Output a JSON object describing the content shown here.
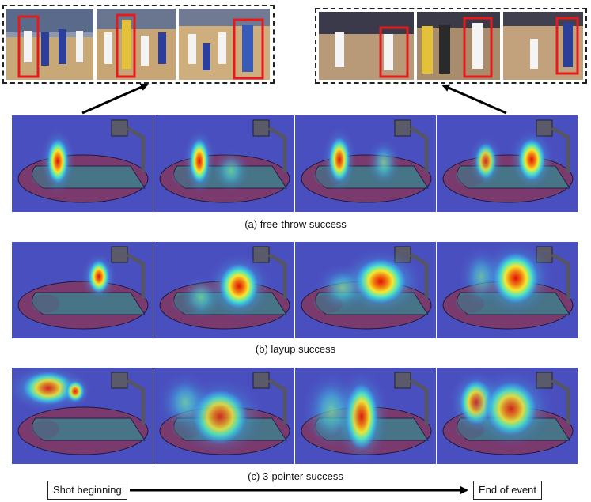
{
  "captions": {
    "a": "(a) free-throw success",
    "b": "(b) layup success",
    "c": "(c) 3-pointer success"
  },
  "timeline": {
    "start_label": "Shot beginning",
    "end_label": "End of event"
  },
  "colors": {
    "heatmap_background": "#4a4fc0",
    "court_ellipse": "#7a3a6e",
    "paint_area": "#3f7f8c",
    "detection_box": "#e8191c",
    "arrow": "#000000"
  }
}
